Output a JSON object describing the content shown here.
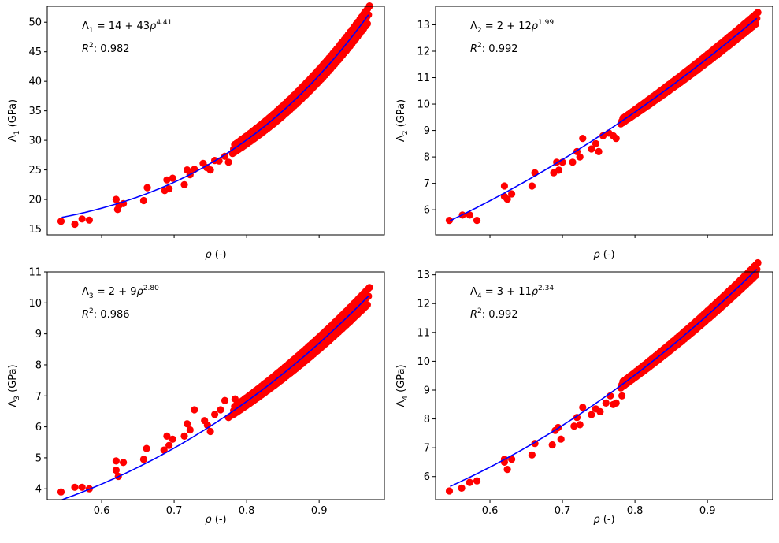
{
  "chart_data": [
    {
      "type": "scatter",
      "panel": "top-left",
      "xlabel": "ρ (-)",
      "ylabel_symbol": "Λ",
      "ylabel_sub": "1",
      "ylabel_unit": " (GPa)",
      "xlim": [
        0.525,
        0.99
      ],
      "ylim": [
        14,
        52.7
      ],
      "xticks": [
        0.6,
        0.7,
        0.8,
        0.9
      ],
      "show_xtick_labels": false,
      "yticks": [
        15,
        20,
        25,
        30,
        35,
        40,
        45,
        50
      ],
      "annotation": {
        "lambda": "Λ",
        "sub": "1",
        "eq": " = 14 + 43",
        "rho": "ρ",
        "exp": "4.41",
        "r2_label": "R",
        "r2_exp": "2",
        "r2_value": ": 0.982"
      },
      "fit": {
        "a": 14,
        "b": 43,
        "p": 4.41,
        "x_range": [
          0.545,
          0.968
        ],
        "color": "#0000ff"
      },
      "marker_color": "#ff0000",
      "sparse_points": [
        [
          0.544,
          16.3
        ],
        [
          0.563,
          15.8
        ],
        [
          0.573,
          16.7
        ],
        [
          0.583,
          16.5
        ],
        [
          0.62,
          20
        ],
        [
          0.622,
          18.3
        ],
        [
          0.624,
          19
        ],
        [
          0.63,
          19.3
        ],
        [
          0.658,
          19.8
        ],
        [
          0.663,
          22
        ],
        [
          0.687,
          21.5
        ],
        [
          0.69,
          23.3
        ],
        [
          0.693,
          21.8
        ],
        [
          0.698,
          23.6
        ],
        [
          0.714,
          22.5
        ],
        [
          0.718,
          25
        ],
        [
          0.722,
          24.2
        ],
        [
          0.728,
          25.1
        ],
        [
          0.74,
          26.1
        ],
        [
          0.745,
          25.4
        ],
        [
          0.75,
          25
        ],
        [
          0.756,
          26.6
        ],
        [
          0.762,
          26.5
        ],
        [
          0.77,
          27.3
        ],
        [
          0.775,
          26.3
        ],
        [
          0.782,
          28.2
        ]
      ],
      "dense_band": {
        "x_range": [
          0.782,
          0.968
        ],
        "offsets": [
          -1.5,
          1.5
        ]
      }
    },
    {
      "type": "scatter",
      "panel": "top-right",
      "xlabel": "ρ (-)",
      "ylabel_symbol": "Λ",
      "ylabel_sub": "2",
      "ylabel_unit": " (GPa)",
      "xlim": [
        0.525,
        0.99
      ],
      "ylim": [
        5.05,
        13.7
      ],
      "xticks": [
        0.6,
        0.7,
        0.8,
        0.9
      ],
      "show_xtick_labels": false,
      "yticks": [
        6,
        7,
        8,
        9,
        10,
        11,
        12,
        13
      ],
      "annotation": {
        "lambda": "Λ",
        "sub": "2",
        "eq": " = 2 + 12",
        "rho": "ρ",
        "exp": "1.99",
        "r2_label": "R",
        "r2_exp": "2",
        "r2_value": ": 0.992"
      },
      "fit": {
        "a": 2,
        "b": 12,
        "p": 1.99,
        "x_range": [
          0.545,
          0.968
        ],
        "color": "#0000ff"
      },
      "marker_color": "#ff0000",
      "sparse_points": [
        [
          0.544,
          5.6
        ],
        [
          0.562,
          5.8
        ],
        [
          0.572,
          5.8
        ],
        [
          0.582,
          5.6
        ],
        [
          0.62,
          6.9
        ],
        [
          0.62,
          6.5
        ],
        [
          0.624,
          6.4
        ],
        [
          0.63,
          6.6
        ],
        [
          0.658,
          6.9
        ],
        [
          0.662,
          7.4
        ],
        [
          0.688,
          7.4
        ],
        [
          0.692,
          7.8
        ],
        [
          0.695,
          7.5
        ],
        [
          0.7,
          7.8
        ],
        [
          0.714,
          7.8
        ],
        [
          0.72,
          8.2
        ],
        [
          0.724,
          8.0
        ],
        [
          0.728,
          8.7
        ],
        [
          0.74,
          8.3
        ],
        [
          0.746,
          8.5
        ],
        [
          0.75,
          8.2
        ],
        [
          0.756,
          8.8
        ],
        [
          0.764,
          8.9
        ],
        [
          0.77,
          8.8
        ],
        [
          0.774,
          8.7
        ],
        [
          0.782,
          9.3
        ]
      ],
      "dense_band": {
        "x_range": [
          0.782,
          0.968
        ],
        "offsets": [
          -0.22,
          0.22
        ]
      }
    },
    {
      "type": "scatter",
      "panel": "bottom-left",
      "xlabel": "ρ (-)",
      "ylabel_symbol": "Λ",
      "ylabel_sub": "3",
      "ylabel_unit": " (GPa)",
      "xlim": [
        0.525,
        0.99
      ],
      "ylim": [
        3.65,
        11
      ],
      "xticks": [
        0.6,
        0.7,
        0.8,
        0.9
      ],
      "xtick_labels": [
        "0.6",
        "0.7",
        "0.8",
        "0.9"
      ],
      "show_xtick_labels": true,
      "yticks": [
        4,
        5,
        6,
        7,
        8,
        9,
        10,
        11
      ],
      "annotation": {
        "lambda": "Λ",
        "sub": "3",
        "eq": " = 2 + 9",
        "rho": "ρ",
        "exp": "2.80",
        "r2_label": "R",
        "r2_exp": "2",
        "r2_value": ": 0.986"
      },
      "fit": {
        "a": 2,
        "b": 9,
        "p": 2.8,
        "x_range": [
          0.545,
          0.968
        ],
        "color": "#0000ff"
      },
      "marker_color": "#ff0000",
      "sparse_points": [
        [
          0.544,
          3.9
        ],
        [
          0.563,
          4.05
        ],
        [
          0.573,
          4.05
        ],
        [
          0.583,
          4.0
        ],
        [
          0.62,
          4.9
        ],
        [
          0.62,
          4.6
        ],
        [
          0.623,
          4.4
        ],
        [
          0.63,
          4.85
        ],
        [
          0.658,
          4.95
        ],
        [
          0.662,
          5.3
        ],
        [
          0.686,
          5.25
        ],
        [
          0.69,
          5.7
        ],
        [
          0.693,
          5.4
        ],
        [
          0.698,
          5.6
        ],
        [
          0.714,
          5.7
        ],
        [
          0.718,
          6.1
        ],
        [
          0.722,
          5.9
        ],
        [
          0.728,
          6.55
        ],
        [
          0.742,
          6.2
        ],
        [
          0.746,
          6.05
        ],
        [
          0.75,
          5.85
        ],
        [
          0.756,
          6.4
        ],
        [
          0.764,
          6.55
        ],
        [
          0.77,
          6.85
        ],
        [
          0.775,
          6.3
        ],
        [
          0.784,
          6.9
        ]
      ],
      "dense_band": {
        "x_range": [
          0.782,
          0.968
        ],
        "offsets": [
          -0.28,
          0.28
        ]
      }
    },
    {
      "type": "scatter",
      "panel": "bottom-right",
      "xlabel": "ρ (-)",
      "ylabel_symbol": "Λ",
      "ylabel_sub": "4",
      "ylabel_unit": " (GPa)",
      "xlim": [
        0.525,
        0.99
      ],
      "ylim": [
        5.2,
        13.1
      ],
      "xticks": [
        0.6,
        0.7,
        0.8,
        0.9
      ],
      "xtick_labels": [
        "0.6",
        "0.7",
        "0.8",
        "0.9"
      ],
      "show_xtick_labels": true,
      "yticks": [
        6,
        7,
        8,
        9,
        10,
        11,
        12,
        13
      ],
      "annotation": {
        "lambda": "Λ",
        "sub": "4",
        "eq": " = 3 + 11",
        "rho": "ρ",
        "exp": "2.34",
        "r2_label": "R",
        "r2_exp": "2",
        "r2_value": ": 0.992"
      },
      "fit": {
        "a": 3,
        "b": 11,
        "p": 2.34,
        "x_range": [
          0.545,
          0.968
        ],
        "color": "#0000ff"
      },
      "marker_color": "#ff0000",
      "sparse_points": [
        [
          0.544,
          5.5
        ],
        [
          0.561,
          5.6
        ],
        [
          0.572,
          5.8
        ],
        [
          0.582,
          5.85
        ],
        [
          0.62,
          6.6
        ],
        [
          0.62,
          6.5
        ],
        [
          0.624,
          6.25
        ],
        [
          0.63,
          6.6
        ],
        [
          0.658,
          6.75
        ],
        [
          0.662,
          7.15
        ],
        [
          0.686,
          7.1
        ],
        [
          0.69,
          7.6
        ],
        [
          0.694,
          7.7
        ],
        [
          0.698,
          7.3
        ],
        [
          0.716,
          7.75
        ],
        [
          0.72,
          8.05
        ],
        [
          0.724,
          7.8
        ],
        [
          0.728,
          8.4
        ],
        [
          0.74,
          8.15
        ],
        [
          0.746,
          8.35
        ],
        [
          0.752,
          8.25
        ],
        [
          0.76,
          8.55
        ],
        [
          0.766,
          8.8
        ],
        [
          0.77,
          8.5
        ],
        [
          0.774,
          8.55
        ],
        [
          0.782,
          8.8
        ]
      ],
      "dense_band": {
        "x_range": [
          0.782,
          0.968
        ],
        "offsets": [
          -0.22,
          0.22
        ]
      }
    }
  ]
}
